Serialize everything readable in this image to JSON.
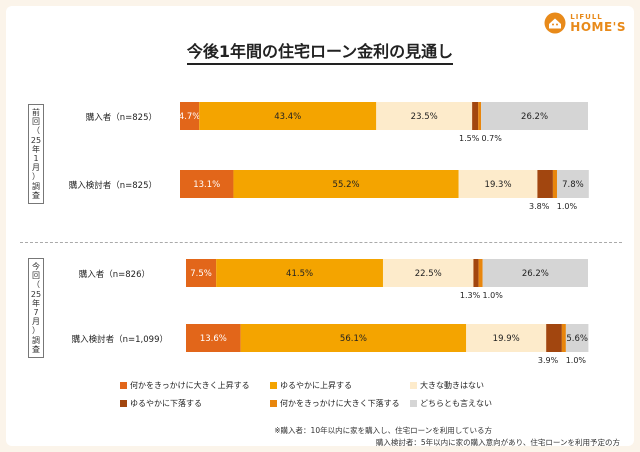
{
  "brand": {
    "top": "LIFULL",
    "main": "HOME'S"
  },
  "title": "今後1年間の住宅ローン金利の見通し",
  "groups": [
    {
      "chars": [
        "前",
        "回",
        "（",
        "25",
        "年",
        "1",
        "月",
        "）",
        "調",
        "査"
      ]
    },
    {
      "chars": [
        "今",
        "回",
        "（",
        "25",
        "年",
        "7",
        "月",
        "）",
        "調",
        "査"
      ]
    }
  ],
  "legend": [
    "何かをきっかけに大きく上昇する",
    "ゆるやかに上昇する",
    "大きな動きはない",
    "ゆるやかに下落する",
    "何かをきっかけに大きく下落する",
    "どちらとも言えない"
  ],
  "notes": [
    "※購入者：10年以内に家を購入し、住宅ローンを利用している方",
    "購入検討者：5年以内に家の購入意向があり、住宅ローンを利用予定の方"
  ],
  "colors": [
    "#e2661a",
    "#f4a400",
    "#fdebcb",
    "#a2460f",
    "#e8860d",
    "#d5d5d5"
  ],
  "chart_data": {
    "type": "bar",
    "orientation": "horizontal",
    "stacked": true,
    "title": "今後1年間の住宅ローン金利の見通し",
    "categories": [
      "購入者（n=825）",
      "購入検討者（n=825）",
      "購入者（n=826）",
      "購入検討者（n=1,099）"
    ],
    "series": [
      {
        "name": "何かをきっかけに大きく上昇する",
        "values": [
          4.7,
          13.1,
          7.5,
          13.6
        ],
        "labels": [
          "4.7%",
          "13.1%",
          "7.5%",
          "13.6%"
        ]
      },
      {
        "name": "ゆるやかに上昇する",
        "values": [
          43.4,
          55.2,
          41.5,
          56.1
        ],
        "labels": [
          "43.4%",
          "55.2%",
          "41.5%",
          "56.1%"
        ]
      },
      {
        "name": "大きな動きはない",
        "values": [
          23.5,
          19.3,
          22.5,
          19.9
        ],
        "labels": [
          "23.5%",
          "19.3%",
          "22.5%",
          "19.9%"
        ]
      },
      {
        "name": "ゆるやかに下落する",
        "values": [
          1.5,
          3.8,
          1.3,
          3.9
        ],
        "labels": [
          "1.5%",
          "3.8%",
          "1.3%",
          "3.9%"
        ]
      },
      {
        "name": "何かをきっかけに大きく下落する",
        "values": [
          0.7,
          1.0,
          1.0,
          1.0
        ],
        "labels": [
          "0.7%",
          "1.0%",
          "1.0%",
          "1.0%"
        ]
      },
      {
        "name": "どちらとも言えない",
        "values": [
          26.2,
          7.8,
          26.2,
          5.6
        ],
        "labels": [
          "26.2%",
          "7.8%",
          "26.2%",
          "5.6%"
        ]
      }
    ],
    "xlim": [
      0,
      100
    ]
  }
}
